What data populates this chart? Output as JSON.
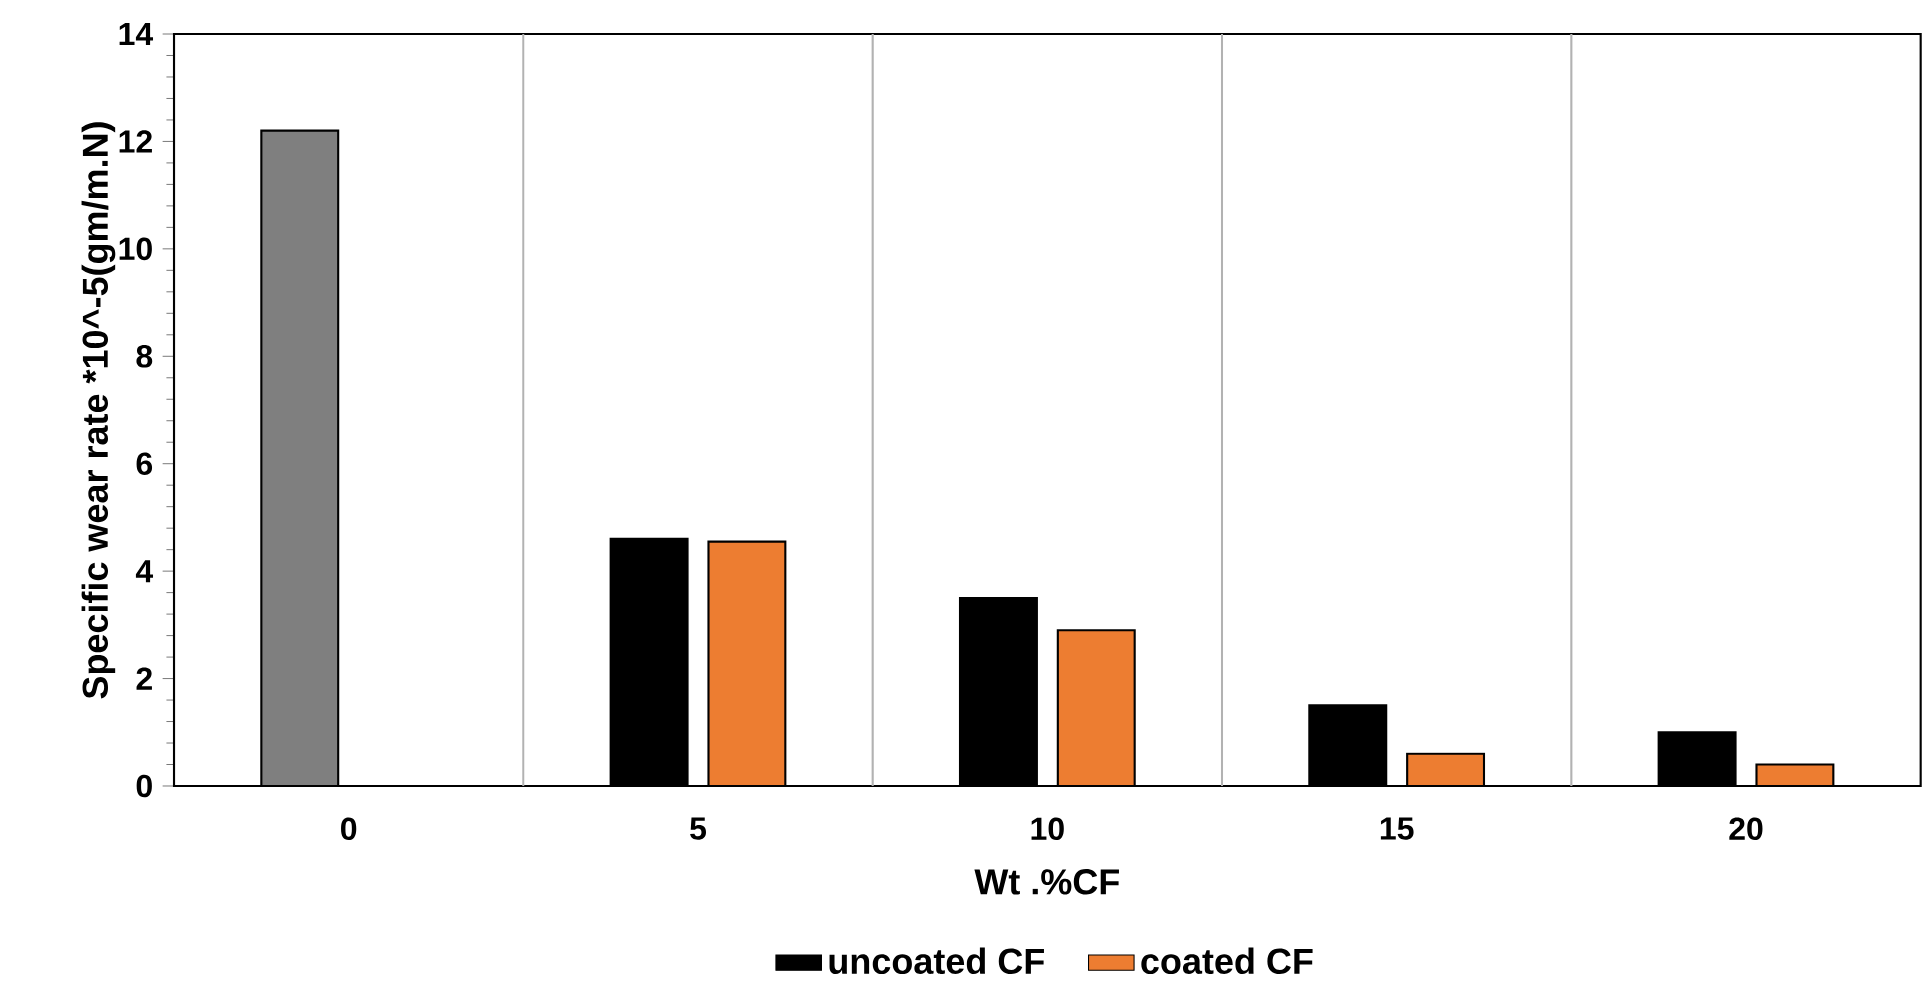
{
  "chart_data": {
    "type": "bar",
    "xlabel": "Wt .%CF",
    "ylabel": "Specific wear rate *10^-5(gm/m.N)",
    "categories": [
      "0",
      "5",
      "10",
      "15",
      "20"
    ],
    "series": [
      {
        "name": "uncoated CF",
        "color": "#000000",
        "colors": [
          "#7f7f7f",
          "#000000",
          "#000000",
          "#000000",
          "#000000"
        ],
        "values": [
          12.2,
          4.6,
          3.5,
          1.5,
          1.0
        ]
      },
      {
        "name": "coated CF",
        "color": "#ed7d31",
        "values": [
          null,
          4.55,
          2.9,
          0.6,
          0.4
        ]
      }
    ],
    "ylim": [
      0,
      14
    ],
    "yticks": [
      0,
      2,
      4,
      6,
      8,
      10,
      12,
      14
    ],
    "grid": "x",
    "legend": "bottom"
  }
}
